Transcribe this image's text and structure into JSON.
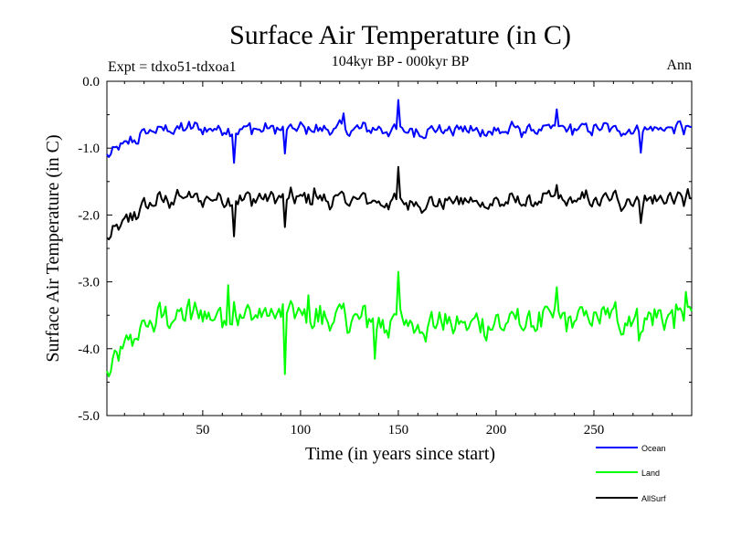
{
  "chart_data": {
    "type": "line",
    "title": "Surface Air Temperature (in C)",
    "subtitle": "104kyr BP - 000kyr BP",
    "experiment": "Expt = tdxo51-tdxoa1",
    "period": "Ann",
    "xlabel": "Time (in years since start)",
    "ylabel": "Surface Air Temperature (in C)",
    "xlim": [
      1,
      300
    ],
    "ylim": [
      -5.0,
      0.0
    ],
    "x_ticks": [
      50,
      100,
      150,
      200,
      250
    ],
    "y_ticks": [
      "0.0",
      "-1.0",
      "-2.0",
      "-3.0",
      "-4.0",
      "-5.0"
    ],
    "series": [
      {
        "name": "Ocean",
        "color": "#0000ff",
        "start": -1.15,
        "mean": -0.72,
        "variability": 0.09,
        "spikes": [
          [
            66,
            -1.22
          ],
          [
            150,
            -0.28
          ],
          [
            92,
            -1.08
          ],
          [
            122,
            -0.48
          ],
          [
            231,
            -0.42
          ],
          [
            274,
            -1.07
          ]
        ]
      },
      {
        "name": "Land",
        "color": "#00ff00",
        "start": -4.45,
        "mean": -3.55,
        "variability": 0.2,
        "spikes": [
          [
            63,
            -3.05
          ],
          [
            66,
            -3.3
          ],
          [
            92,
            -4.38
          ],
          [
            104,
            -3.2
          ],
          [
            150,
            -2.85
          ],
          [
            231,
            -3.08
          ],
          [
            273,
            -3.88
          ],
          [
            297,
            -3.15
          ],
          [
            138,
            -4.15
          ]
        ]
      },
      {
        "name": "AllSurf",
        "color": "#000000",
        "start": -2.42,
        "mean": -1.78,
        "variability": 0.12,
        "spikes": [
          [
            66,
            -2.32
          ],
          [
            150,
            -1.28
          ],
          [
            92,
            -2.18
          ],
          [
            107,
            -1.6
          ],
          [
            231,
            -1.55
          ],
          [
            274,
            -2.12
          ]
        ]
      }
    ]
  }
}
